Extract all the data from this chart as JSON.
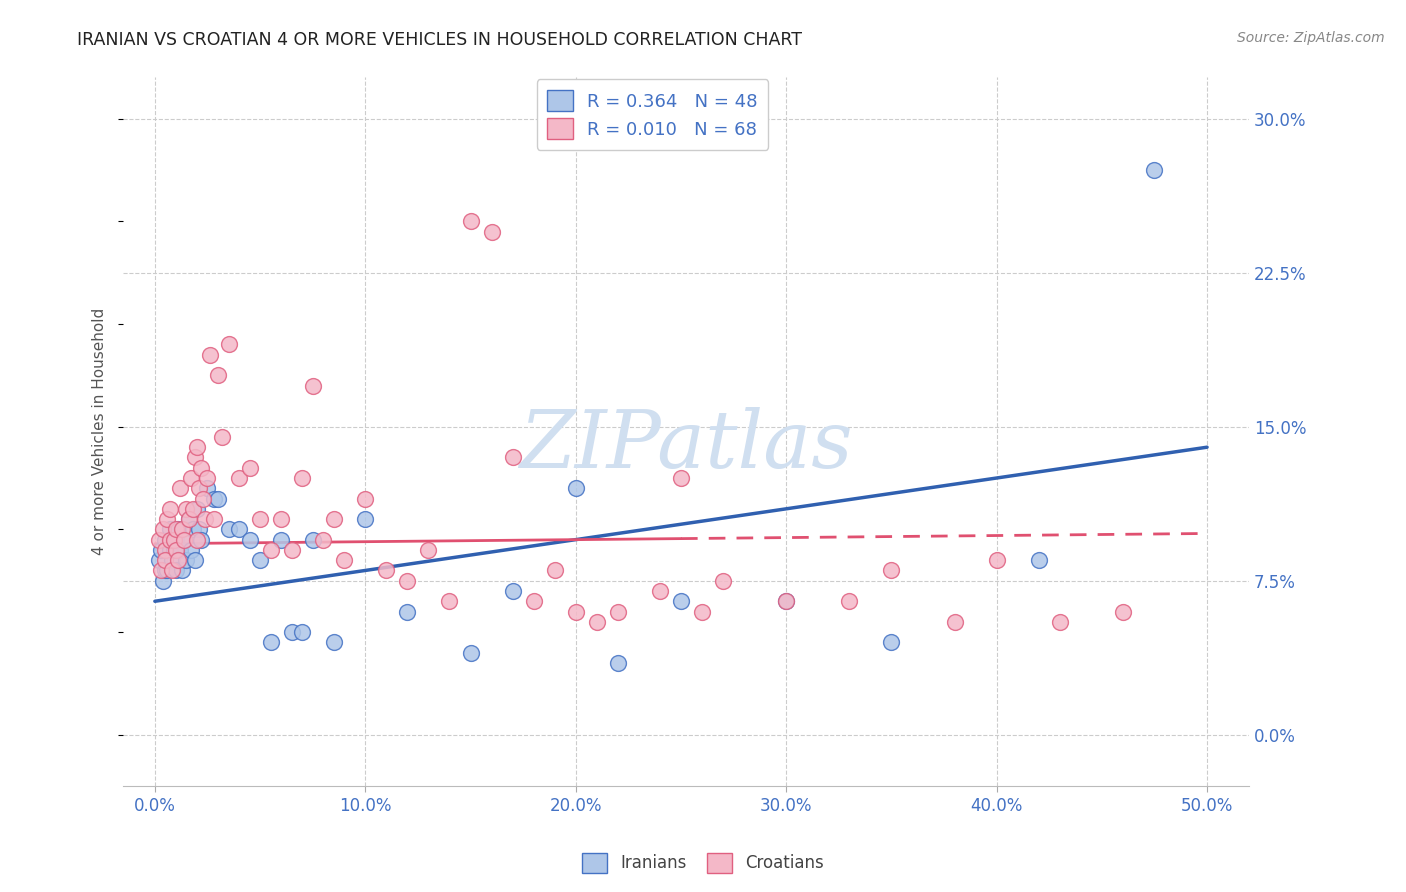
{
  "title": "IRANIAN VS CROATIAN 4 OR MORE VEHICLES IN HOUSEHOLD CORRELATION CHART",
  "source": "Source: ZipAtlas.com",
  "xlabel_vals": [
    0.0,
    10.0,
    20.0,
    30.0,
    40.0,
    50.0
  ],
  "ylabel_vals": [
    0.0,
    7.5,
    15.0,
    22.5,
    30.0
  ],
  "xlim": [
    -1.5,
    52.0
  ],
  "ylim": [
    -2.5,
    32.0
  ],
  "ylabel": "4 or more Vehicles in Household",
  "iranian_R": 0.364,
  "iranian_N": 48,
  "croatian_R": 0.01,
  "croatian_N": 68,
  "legend_label_iranian": "Iranians",
  "legend_label_croatian": "Croatians",
  "blue_fill": "#aec6e8",
  "pink_fill": "#f4b8c8",
  "blue_edge": "#4472c4",
  "pink_edge": "#e06080",
  "blue_line": "#3060b0",
  "pink_line": "#e05070",
  "watermark_color": "#d0dff0",
  "grid_color": "#cccccc",
  "title_color": "#222222",
  "tick_color": "#4472c4",
  "ylabel_color": "#555555",
  "source_color": "#888888",
  "iranian_x": [
    0.2,
    0.3,
    0.4,
    0.5,
    0.5,
    0.6,
    0.7,
    0.7,
    0.8,
    0.9,
    1.0,
    1.0,
    1.1,
    1.2,
    1.3,
    1.4,
    1.5,
    1.6,
    1.7,
    1.8,
    1.9,
    2.0,
    2.1,
    2.2,
    2.5,
    2.8,
    3.0,
    3.5,
    4.0,
    4.5,
    5.0,
    5.5,
    6.0,
    6.5,
    7.0,
    7.5,
    8.5,
    10.0,
    12.0,
    15.0,
    17.0,
    20.0,
    22.0,
    25.0,
    30.0,
    35.0,
    42.0,
    47.5
  ],
  "iranian_y": [
    8.5,
    9.0,
    7.5,
    8.0,
    9.5,
    8.0,
    9.0,
    10.0,
    8.5,
    9.0,
    8.0,
    9.5,
    10.0,
    9.0,
    8.0,
    9.5,
    8.5,
    10.5,
    9.0,
    10.0,
    8.5,
    11.0,
    10.0,
    9.5,
    12.0,
    11.5,
    11.5,
    10.0,
    10.0,
    9.5,
    8.5,
    4.5,
    9.5,
    5.0,
    5.0,
    9.5,
    4.5,
    10.5,
    6.0,
    4.0,
    7.0,
    12.0,
    3.5,
    6.5,
    6.5,
    4.5,
    8.5,
    27.5
  ],
  "croatian_x": [
    0.2,
    0.3,
    0.4,
    0.5,
    0.5,
    0.6,
    0.7,
    0.7,
    0.8,
    0.9,
    1.0,
    1.0,
    1.1,
    1.2,
    1.3,
    1.4,
    1.5,
    1.6,
    1.7,
    1.8,
    1.9,
    2.0,
    2.0,
    2.1,
    2.2,
    2.3,
    2.4,
    2.5,
    2.6,
    2.8,
    3.0,
    3.2,
    3.5,
    4.0,
    4.5,
    5.0,
    5.5,
    6.0,
    6.5,
    7.0,
    7.5,
    8.0,
    8.5,
    9.0,
    10.0,
    11.0,
    12.0,
    13.0,
    14.0,
    15.0,
    16.0,
    17.0,
    18.0,
    19.0,
    20.0,
    21.0,
    22.0,
    24.0,
    25.0,
    26.0,
    27.0,
    30.0,
    33.0,
    35.0,
    38.0,
    40.0,
    43.0,
    46.0
  ],
  "croatian_y": [
    9.5,
    8.0,
    10.0,
    9.0,
    8.5,
    10.5,
    9.5,
    11.0,
    8.0,
    9.5,
    10.0,
    9.0,
    8.5,
    12.0,
    10.0,
    9.5,
    11.0,
    10.5,
    12.5,
    11.0,
    13.5,
    9.5,
    14.0,
    12.0,
    13.0,
    11.5,
    10.5,
    12.5,
    18.5,
    10.5,
    17.5,
    14.5,
    19.0,
    12.5,
    13.0,
    10.5,
    9.0,
    10.5,
    9.0,
    12.5,
    17.0,
    9.5,
    10.5,
    8.5,
    11.5,
    8.0,
    7.5,
    9.0,
    6.5,
    25.0,
    24.5,
    13.5,
    6.5,
    8.0,
    6.0,
    5.5,
    6.0,
    7.0,
    12.5,
    6.0,
    7.5,
    6.5,
    6.5,
    8.0,
    5.5,
    8.5,
    5.5,
    6.0
  ],
  "iranian_trend_x": [
    0.0,
    50.0
  ],
  "iranian_trend_y": [
    6.5,
    14.0
  ],
  "croatian_trend_x": [
    0.0,
    50.0
  ],
  "croatian_trend_y": [
    9.3,
    9.8
  ]
}
